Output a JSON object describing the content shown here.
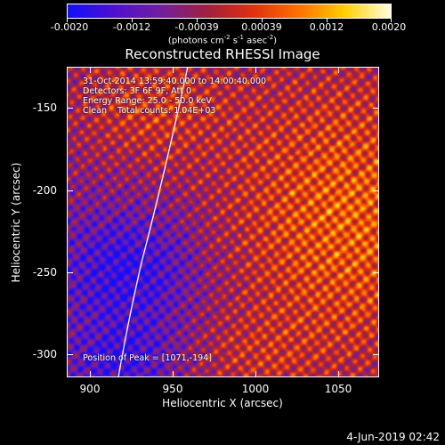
{
  "colorbar": {
    "tick_labels": [
      "-0.0020",
      "-0.0012",
      "-0.00039",
      "0.00039",
      "0.0012",
      "0.0020"
    ],
    "tick_values": [
      -0.002,
      -0.0012,
      -0.00039,
      0.00039,
      0.0012,
      0.002
    ],
    "range": [
      -0.002,
      0.002
    ],
    "units_prefix": "(photons cm",
    "units_sup1": "-2",
    "units_mid1": " s",
    "units_sup2": "-1",
    "units_mid2": " asec",
    "units_sup3": "-2",
    "units_suffix": ")",
    "colors": [
      "#1010ff",
      "#5010d0",
      "#7020a0",
      "#a02040",
      "#e03010",
      "#ff7000",
      "#ffd000",
      "#ffffe0"
    ]
  },
  "title": "Reconstructed RHESSI Image",
  "info_lines": [
    "31-Oct-2014 13:59:40.000 to 14:00:40.000",
    "Detectors: 3F 6F 9F, Att 0",
    "Energy Range: 25.0 - 50.0 keV",
    "Clean    Total counts: 1.04E+03"
  ],
  "peak_text": "Position of Peak = [1071,-194]",
  "x_axis": {
    "label": "Heliocentric X (arcsec)",
    "ticks": [
      "900",
      "950",
      "1000",
      "1050"
    ],
    "range": [
      885,
      1075
    ]
  },
  "y_axis": {
    "label": "Heliocentric Y (arcsec)",
    "ticks": [
      "-150",
      "-200",
      "-250",
      "-300"
    ],
    "range": [
      -315,
      -126
    ]
  },
  "datestamp": "4-Jun-2019 02:42"
}
